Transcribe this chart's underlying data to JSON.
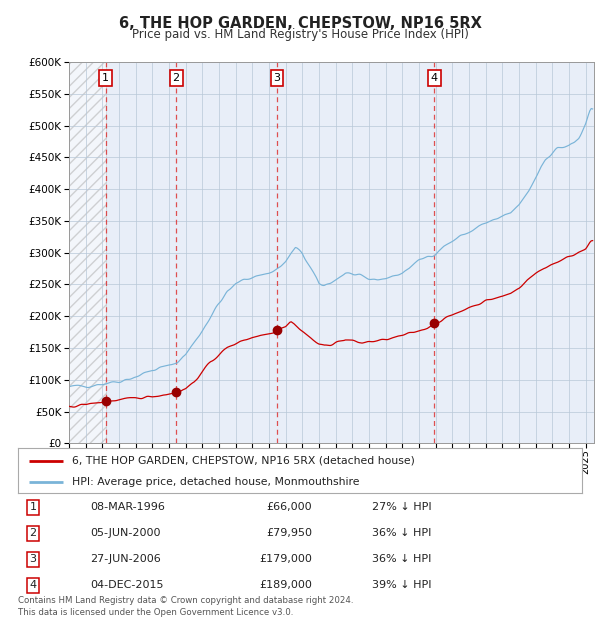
{
  "title": "6, THE HOP GARDEN, CHEPSTOW, NP16 5RX",
  "subtitle": "Price paid vs. HM Land Registry's House Price Index (HPI)",
  "legend_property": "6, THE HOP GARDEN, CHEPSTOW, NP16 5RX (detached house)",
  "legend_hpi": "HPI: Average price, detached house, Monmouthshire",
  "footer": "Contains HM Land Registry data © Crown copyright and database right 2024.\nThis data is licensed under the Open Government Licence v3.0.",
  "sales": [
    {
      "label": "1",
      "date": "08-MAR-1996",
      "price": 66000,
      "pct": "27% ↓ HPI",
      "x_year": 1996.19
    },
    {
      "label": "2",
      "date": "05-JUN-2000",
      "price": 79950,
      "pct": "36% ↓ HPI",
      "x_year": 2000.43
    },
    {
      "label": "3",
      "date": "27-JUN-2006",
      "price": 179000,
      "pct": "36% ↓ HPI",
      "x_year": 2006.49
    },
    {
      "label": "4",
      "date": "04-DEC-2015",
      "price": 189000,
      "pct": "39% ↓ HPI",
      "x_year": 2015.92
    }
  ],
  "property_color": "#cc0000",
  "hpi_color": "#7ab4d8",
  "sale_marker_color": "#990000",
  "vline_color": "#dd3333",
  "plot_bg": "#e8eef8",
  "grid_color": "#b8c8d8",
  "ylim": [
    0,
    600000
  ],
  "xlim_start": 1994.0,
  "xlim_end": 2025.5,
  "yticks": [
    0,
    50000,
    100000,
    150000,
    200000,
    250000,
    300000,
    350000,
    400000,
    450000,
    500000,
    550000,
    600000
  ],
  "hpi_anchors": [
    [
      1994.0,
      88000
    ],
    [
      1995.0,
      91000
    ],
    [
      1996.0,
      94000
    ],
    [
      1997.0,
      98000
    ],
    [
      1998.0,
      105000
    ],
    [
      1999.0,
      115000
    ],
    [
      2000.0,
      122000
    ],
    [
      2000.5,
      128000
    ],
    [
      2001.0,
      140000
    ],
    [
      2001.5,
      158000
    ],
    [
      2002.0,
      178000
    ],
    [
      2002.5,
      200000
    ],
    [
      2003.0,
      220000
    ],
    [
      2003.5,
      238000
    ],
    [
      2004.0,
      250000
    ],
    [
      2004.5,
      258000
    ],
    [
      2005.0,
      262000
    ],
    [
      2005.5,
      265000
    ],
    [
      2006.0,
      268000
    ],
    [
      2006.3,
      272000
    ],
    [
      2006.7,
      278000
    ],
    [
      2007.0,
      285000
    ],
    [
      2007.3,
      298000
    ],
    [
      2007.6,
      307000
    ],
    [
      2008.0,
      298000
    ],
    [
      2008.3,
      285000
    ],
    [
      2008.6,
      270000
    ],
    [
      2009.0,
      250000
    ],
    [
      2009.3,
      248000
    ],
    [
      2009.6,
      252000
    ],
    [
      2010.0,
      258000
    ],
    [
      2010.3,
      263000
    ],
    [
      2010.6,
      268000
    ],
    [
      2011.0,
      266000
    ],
    [
      2011.3,
      262000
    ],
    [
      2011.6,
      260000
    ],
    [
      2012.0,
      258000
    ],
    [
      2012.5,
      258000
    ],
    [
      2013.0,
      260000
    ],
    [
      2013.5,
      263000
    ],
    [
      2014.0,
      268000
    ],
    [
      2014.5,
      278000
    ],
    [
      2015.0,
      287000
    ],
    [
      2015.5,
      294000
    ],
    [
      2016.0,
      300000
    ],
    [
      2016.5,
      310000
    ],
    [
      2017.0,
      318000
    ],
    [
      2017.5,
      326000
    ],
    [
      2018.0,
      332000
    ],
    [
      2018.5,
      340000
    ],
    [
      2019.0,
      346000
    ],
    [
      2019.5,
      351000
    ],
    [
      2020.0,
      355000
    ],
    [
      2020.5,
      362000
    ],
    [
      2021.0,
      375000
    ],
    [
      2021.3,
      385000
    ],
    [
      2021.6,
      398000
    ],
    [
      2022.0,
      418000
    ],
    [
      2022.3,
      435000
    ],
    [
      2022.6,
      448000
    ],
    [
      2023.0,
      458000
    ],
    [
      2023.3,
      464000
    ],
    [
      2023.6,
      466000
    ],
    [
      2024.0,
      468000
    ],
    [
      2024.3,
      472000
    ],
    [
      2024.6,
      480000
    ],
    [
      2025.0,
      500000
    ],
    [
      2025.3,
      525000
    ]
  ],
  "prop_anchors": [
    [
      1994.0,
      58000
    ],
    [
      1995.0,
      61000
    ],
    [
      1995.5,
      63000
    ],
    [
      1996.0,
      65000
    ],
    [
      1996.19,
      66000
    ],
    [
      1996.5,
      66500
    ],
    [
      1997.0,
      68000
    ],
    [
      1997.5,
      69000
    ],
    [
      1998.0,
      71000
    ],
    [
      1998.5,
      72500
    ],
    [
      1999.0,
      74000
    ],
    [
      1999.5,
      76000
    ],
    [
      2000.0,
      78000
    ],
    [
      2000.43,
      79950
    ],
    [
      2001.0,
      86000
    ],
    [
      2001.5,
      97000
    ],
    [
      2002.0,
      112000
    ],
    [
      2002.5,
      128000
    ],
    [
      2003.0,
      140000
    ],
    [
      2003.5,
      150000
    ],
    [
      2004.0,
      157000
    ],
    [
      2004.5,
      163000
    ],
    [
      2005.0,
      167000
    ],
    [
      2005.5,
      170000
    ],
    [
      2006.0,
      173000
    ],
    [
      2006.3,
      176000
    ],
    [
      2006.49,
      179000
    ],
    [
      2006.7,
      182000
    ],
    [
      2007.0,
      185000
    ],
    [
      2007.3,
      192000
    ],
    [
      2007.5,
      188000
    ],
    [
      2007.7,
      183000
    ],
    [
      2008.0,
      177000
    ],
    [
      2008.3,
      170000
    ],
    [
      2008.6,
      163000
    ],
    [
      2009.0,
      156000
    ],
    [
      2009.3,
      153000
    ],
    [
      2009.6,
      155000
    ],
    [
      2010.0,
      159000
    ],
    [
      2010.3,
      161000
    ],
    [
      2010.6,
      163000
    ],
    [
      2011.0,
      161000
    ],
    [
      2011.3,
      159000
    ],
    [
      2011.6,
      158000
    ],
    [
      2012.0,
      160000
    ],
    [
      2012.5,
      161000
    ],
    [
      2013.0,
      163000
    ],
    [
      2013.5,
      166000
    ],
    [
      2014.0,
      169000
    ],
    [
      2014.5,
      173000
    ],
    [
      2015.0,
      177000
    ],
    [
      2015.5,
      182000
    ],
    [
      2015.92,
      189000
    ],
    [
      2016.2,
      192000
    ],
    [
      2016.5,
      196000
    ],
    [
      2017.0,
      201000
    ],
    [
      2017.5,
      208000
    ],
    [
      2018.0,
      214000
    ],
    [
      2018.5,
      219000
    ],
    [
      2019.0,
      224000
    ],
    [
      2019.5,
      228000
    ],
    [
      2020.0,
      231000
    ],
    [
      2020.5,
      236000
    ],
    [
      2021.0,
      245000
    ],
    [
      2021.5,
      257000
    ],
    [
      2022.0,
      267000
    ],
    [
      2022.5,
      276000
    ],
    [
      2023.0,
      282000
    ],
    [
      2023.5,
      288000
    ],
    [
      2024.0,
      293000
    ],
    [
      2024.5,
      300000
    ],
    [
      2025.0,
      308000
    ],
    [
      2025.3,
      318000
    ]
  ]
}
